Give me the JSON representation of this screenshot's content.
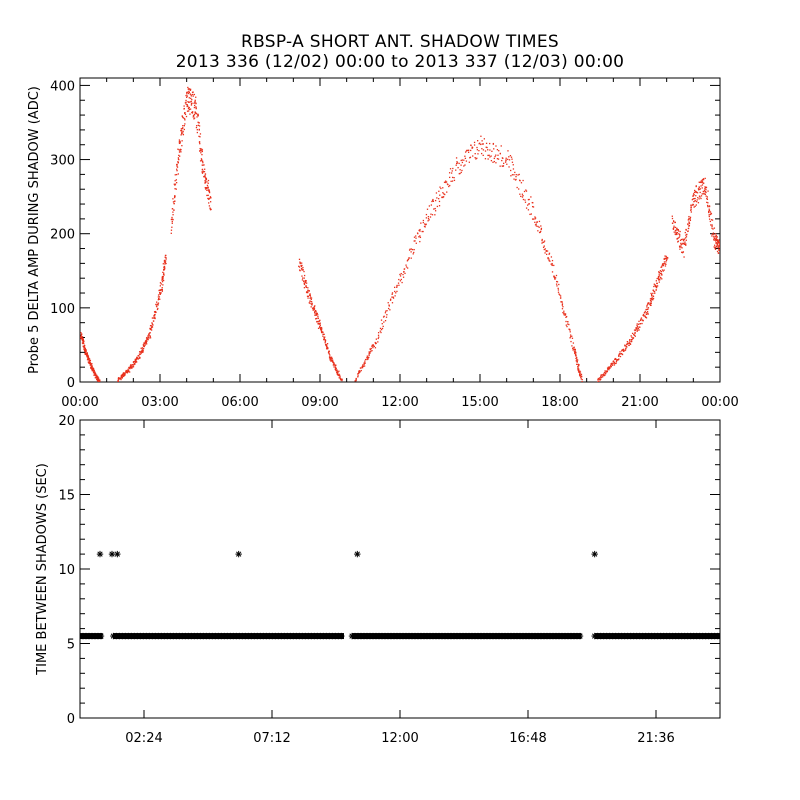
{
  "title": "RBSP-A SHORT ANT. SHADOW TIMES",
  "subtitle": "2013 336 (12/02) 00:00 to 2013 337 (12/03) 00:00",
  "colors": {
    "data_top": "#e8301c",
    "data_bottom": "#000000",
    "axis": "#000000",
    "background": "#ffffff"
  },
  "chart_data": [
    {
      "type": "scatter",
      "name": "shadow-amplitude",
      "xlabel": "",
      "ylabel": "Probe 5 DELTA AMP DURING SHADOW (ADC)",
      "xlim": [
        0,
        24
      ],
      "ylim": [
        0,
        410
      ],
      "x_unit": "hours",
      "xticks": [
        0,
        3,
        6,
        9,
        12,
        15,
        18,
        21,
        24
      ],
      "xtick_labels": [
        "00:00",
        "03:00",
        "06:00",
        "09:00",
        "12:00",
        "15:00",
        "18:00",
        "21:00",
        "00:00"
      ],
      "yticks": [
        0,
        100,
        200,
        300,
        400
      ],
      "ytick_labels": [
        "0",
        "100",
        "200",
        "300",
        "400"
      ],
      "series": [
        {
          "name": "lobe-1-fall",
          "x": [
            0.0,
            0.2,
            0.4,
            0.6,
            0.75
          ],
          "y": [
            70,
            45,
            25,
            10,
            0
          ]
        },
        {
          "name": "lobe-2-rise",
          "x": [
            1.4,
            1.8,
            2.2,
            2.6,
            3.0,
            3.2
          ],
          "y": [
            5,
            20,
            40,
            70,
            130,
            180
          ]
        },
        {
          "name": "lobe-2-upper",
          "x": [
            3.4,
            3.7,
            4.0,
            4.3,
            4.6,
            4.9
          ],
          "y": [
            220,
            330,
            400,
            390,
            300,
            250
          ]
        },
        {
          "name": "lobe-3-fall",
          "x": [
            8.2,
            8.6,
            9.0,
            9.4,
            9.8
          ],
          "y": [
            170,
            120,
            80,
            35,
            5
          ]
        },
        {
          "name": "arch-rise",
          "x": [
            10.3,
            11.0,
            12.0,
            13.0,
            14.0,
            15.0
          ],
          "y": [
            5,
            55,
            150,
            235,
            300,
            335
          ]
        },
        {
          "name": "arch-fall",
          "x": [
            15.0,
            16.0,
            17.0,
            17.8,
            18.5,
            18.8
          ],
          "y": [
            335,
            315,
            240,
            150,
            50,
            5
          ]
        },
        {
          "name": "lobe-4-rise",
          "x": [
            19.4,
            20.0,
            20.6,
            21.2,
            21.6,
            22.0
          ],
          "y": [
            5,
            30,
            60,
            100,
            140,
            180
          ]
        },
        {
          "name": "lobe-4-tail",
          "x": [
            22.2,
            22.6,
            23.0,
            23.4,
            23.8,
            24.0
          ],
          "y": [
            230,
            190,
            260,
            280,
            200,
            190
          ]
        }
      ]
    },
    {
      "type": "scatter",
      "name": "time-between-shadows",
      "xlabel": "",
      "ylabel": "TIME BETWEEN SHADOWS (SEC)",
      "xlim": [
        0,
        24
      ],
      "ylim": [
        0,
        20
      ],
      "x_unit": "hours",
      "xticks": [
        2.4,
        7.2,
        12.0,
        16.8,
        21.6
      ],
      "xtick_labels": [
        "02:24",
        "07:12",
        "12:00",
        "16:48",
        "21:36"
      ],
      "yticks": [
        0,
        5,
        10,
        15,
        20
      ],
      "ytick_labels": [
        "0",
        "5",
        "10",
        "15",
        "20"
      ],
      "baseline": {
        "value": 5.5,
        "segments": [
          [
            0.0,
            0.85
          ],
          [
            1.25,
            9.9
          ],
          [
            10.2,
            18.8
          ],
          [
            19.3,
            24.0
          ]
        ]
      },
      "outliers": {
        "x": [
          0.75,
          1.2,
          1.4,
          5.95,
          10.4,
          19.3
        ],
        "y": [
          11.0,
          11.0,
          11.0,
          11.0,
          11.0,
          11.0
        ]
      }
    }
  ]
}
